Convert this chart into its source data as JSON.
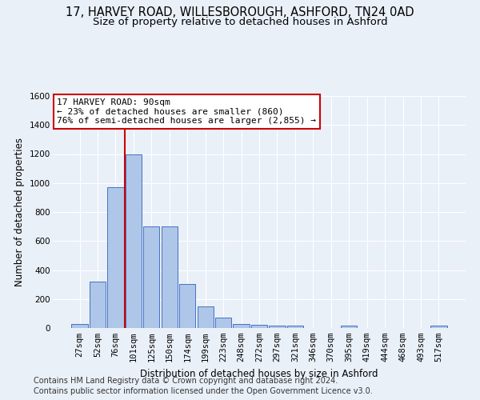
{
  "title_line1": "17, HARVEY ROAD, WILLESBOROUGH, ASHFORD, TN24 0AD",
  "title_line2": "Size of property relative to detached houses in Ashford",
  "xlabel": "Distribution of detached houses by size in Ashford",
  "ylabel": "Number of detached properties",
  "footer_line1": "Contains HM Land Registry data © Crown copyright and database right 2024.",
  "footer_line2": "Contains public sector information licensed under the Open Government Licence v3.0.",
  "bar_labels": [
    "27sqm",
    "52sqm",
    "76sqm",
    "101sqm",
    "125sqm",
    "150sqm",
    "174sqm",
    "199sqm",
    "223sqm",
    "248sqm",
    "272sqm",
    "297sqm",
    "321sqm",
    "346sqm",
    "370sqm",
    "395sqm",
    "419sqm",
    "444sqm",
    "468sqm",
    "493sqm",
    "517sqm"
  ],
  "bar_values": [
    30,
    320,
    970,
    1200,
    700,
    700,
    305,
    150,
    70,
    30,
    20,
    15,
    15,
    0,
    0,
    15,
    0,
    0,
    0,
    0,
    15
  ],
  "bar_color": "#aec6e8",
  "bar_edge_color": "#4472c4",
  "property_label": "17 HARVEY ROAD: 90sqm",
  "annotation_line1": "← 23% of detached houses are smaller (860)",
  "annotation_line2": "76% of semi-detached houses are larger (2,855) →",
  "annotation_box_color": "#ffffff",
  "annotation_box_edge": "#cc0000",
  "vline_color": "#cc0000",
  "vline_x_idx": 2.5,
  "ylim": [
    0,
    1600
  ],
  "yticks": [
    0,
    200,
    400,
    600,
    800,
    1000,
    1200,
    1400,
    1600
  ],
  "bg_color": "#eaf0f8",
  "plot_bg_color": "#eaf0f8",
  "grid_color": "#ffffff",
  "title_fontsize": 10.5,
  "subtitle_fontsize": 9.5,
  "axis_label_fontsize": 8.5,
  "tick_fontsize": 7.5,
  "footer_fontsize": 7.0,
  "annotation_fontsize": 8.0
}
